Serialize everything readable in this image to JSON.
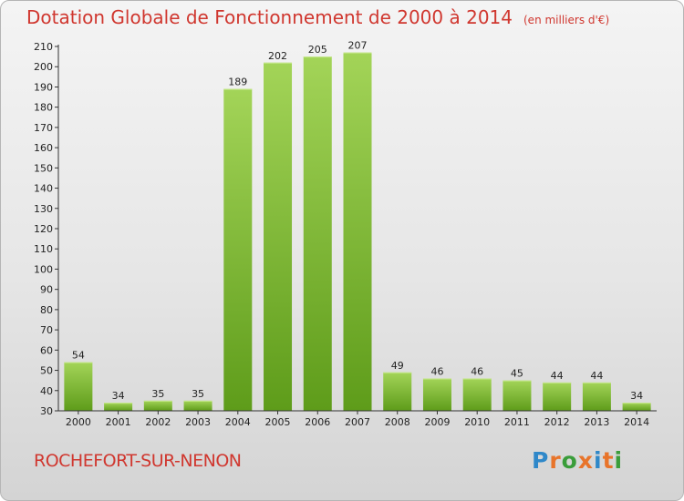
{
  "title": "Dotation Globale de Fonctionnement de 2000 à 2014",
  "unit_note": "(en milliers d'€)",
  "commune": "ROCHEFORT-SUR-NENON",
  "logo": {
    "text": "Proxiti",
    "letter_colors": [
      "#2f88c9",
      "#e8742a",
      "#3a9d3a",
      "#e8742a",
      "#2f88c9",
      "#e8742a",
      "#3a9d3a"
    ]
  },
  "colors": {
    "title": "#d0372f",
    "bar_top": "#a3d458",
    "bar_bottom": "#5e9c1a",
    "axis": "#333333"
  },
  "chart_data": {
    "type": "bar",
    "categories": [
      "2000",
      "2001",
      "2002",
      "2003",
      "2004",
      "2005",
      "2006",
      "2007",
      "2008",
      "2009",
      "2010",
      "2011",
      "2012",
      "2013",
      "2014"
    ],
    "values": [
      54,
      34,
      35,
      35,
      189,
      202,
      205,
      207,
      49,
      46,
      46,
      45,
      44,
      44,
      34
    ],
    "ylim": [
      30,
      210
    ],
    "yticks": [
      30,
      40,
      50,
      60,
      70,
      80,
      90,
      100,
      110,
      120,
      130,
      140,
      150,
      160,
      170,
      180,
      190,
      200,
      210
    ],
    "xlabel": "",
    "ylabel": "",
    "grid": false
  }
}
